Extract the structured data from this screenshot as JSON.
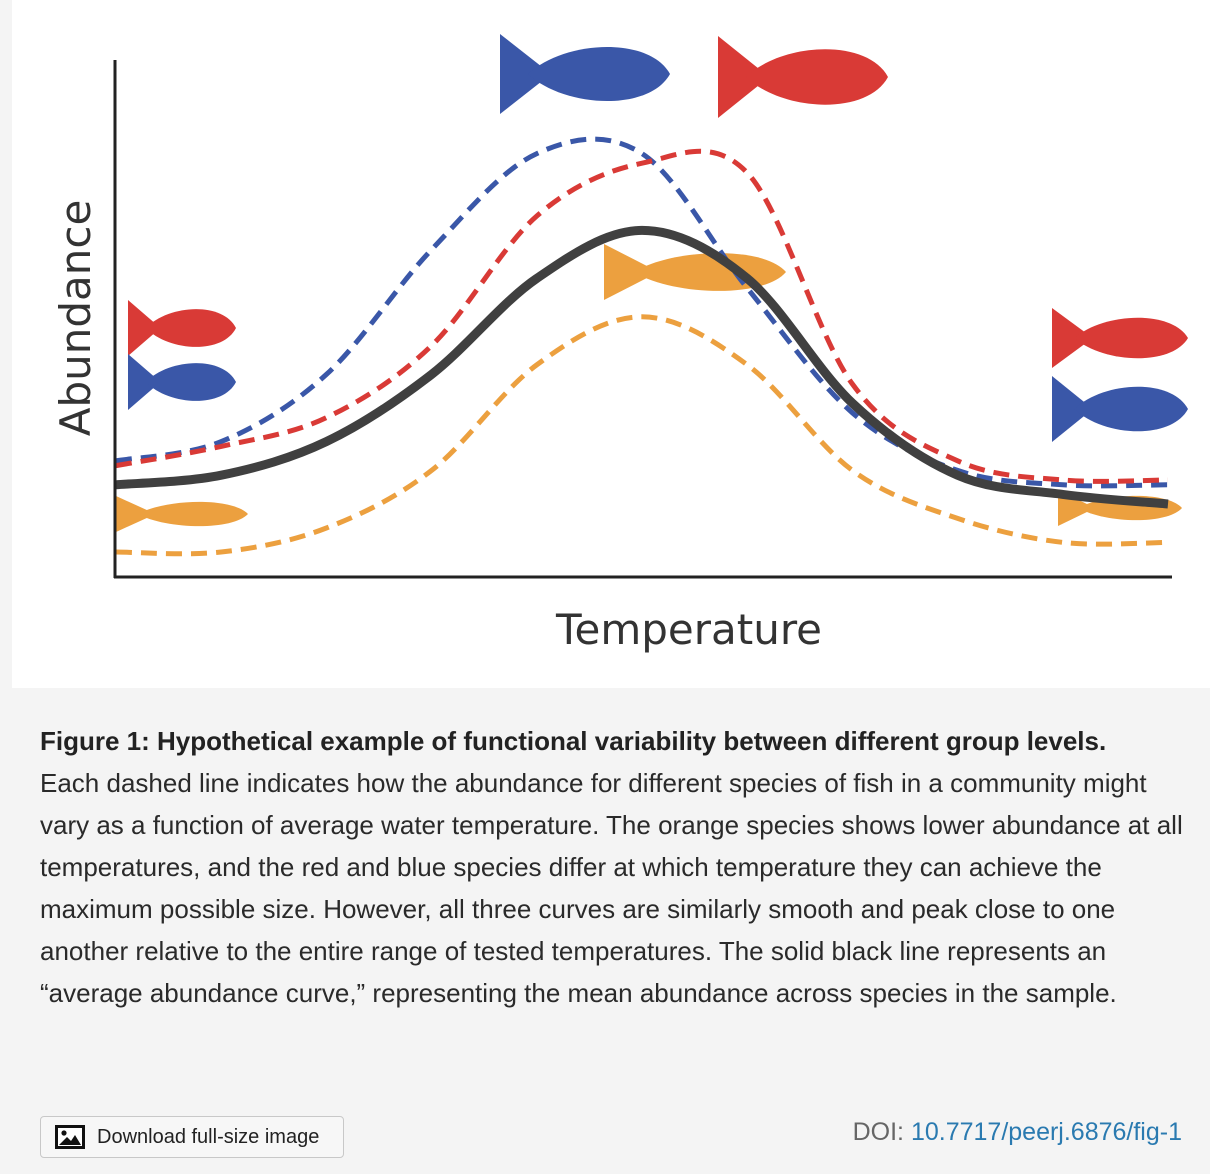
{
  "chart_data": {
    "type": "line",
    "xlabel": "Temperature",
    "ylabel": "Abundance",
    "x": [
      0,
      0.1,
      0.2,
      0.3,
      0.4,
      0.5,
      0.6,
      0.7,
      0.8,
      0.9,
      1.0
    ],
    "series": [
      {
        "style": "dashed",
        "color": "#3a57a8",
        "values": [
          0.24,
          0.28,
          0.42,
          0.68,
          0.88,
          0.88,
          0.6,
          0.34,
          0.22,
          0.19,
          0.19
        ]
      },
      {
        "style": "dashed",
        "color": "#d93a36",
        "values": [
          0.23,
          0.27,
          0.33,
          0.48,
          0.75,
          0.86,
          0.84,
          0.4,
          0.24,
          0.2,
          0.2
        ]
      },
      {
        "style": "solid",
        "color": "#404040",
        "values": [
          0.19,
          0.21,
          0.28,
          0.42,
          0.62,
          0.72,
          0.62,
          0.36,
          0.21,
          0.17,
          0.15
        ]
      },
      {
        "style": "dashed",
        "color": "#eca03f",
        "values": [
          0.05,
          0.05,
          0.1,
          0.22,
          0.44,
          0.54,
          0.44,
          0.22,
          0.12,
          0.07,
          0.07
        ]
      }
    ],
    "grid": false,
    "legend": "none"
  },
  "colors": {
    "blue": "#3a57a8",
    "red": "#d93a36",
    "orange": "#eca03f",
    "black": "#404040"
  },
  "caption": {
    "title": "Figure 1: Hypothetical example of functional variability between different group levels.",
    "body": "Each dashed line indicates how the abundance for different species of fish in a community might vary as a function of average water temperature. The orange species shows lower abundance at all temperatures, and the red and blue species differ at which temperature they can achieve the maximum possible size. However, all three curves are similarly smooth and peak close to one another relative to the entire range of tested temperatures. The solid black line represents an “average abundance curve,” representing the mean abundance across species in the sample."
  },
  "footer": {
    "download_label": "Download full-size image",
    "download_icon": "image-icon",
    "doi_prefix": "DOI: ",
    "doi_value": "10.7717/peerj.6876/fig-1"
  }
}
